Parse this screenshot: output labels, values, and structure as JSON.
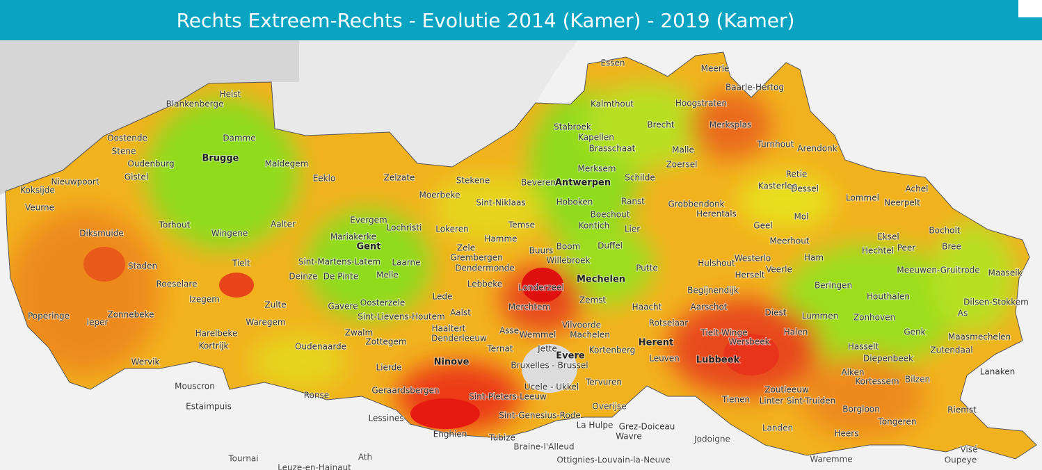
{
  "header": {
    "title": "Rechts Extreem-Rechts - Evolutie 2014 (Kamer) - 2019 (Kamer)"
  },
  "map": {
    "labels": [
      "Essen",
      "Meerle",
      "Baarle-Hertog",
      "Heist",
      "Blankenberge",
      "Kalmthout",
      "Hoogstraten",
      "Brecht",
      "Merksplas",
      "Stabroek",
      "Oostende",
      "Damme",
      "Kapellen",
      "Turnhout",
      "Arendonk",
      "Brasschaat",
      "Stene",
      "Malle",
      "Brugge",
      "Oudenburg",
      "Maldegem",
      "Zoersel",
      "Merksem",
      "Gistel",
      "Eeklo",
      "Zelzate",
      "Stekene",
      "Beveren",
      "Antwerpen",
      "Schilde",
      "Retie",
      "Nieuwpoort",
      "Kasterlee",
      "Dessel",
      "Achel",
      "Koksijde",
      "Moerbeke",
      "Lommel",
      "Neerpelt",
      "Veurne",
      "Sint-Niklaas",
      "Hoboken",
      "Ranst",
      "Grobbendonk",
      "Herentals",
      "Geel",
      "Mol",
      "Evergem",
      "Torhout",
      "Aalter",
      "Wingene",
      "Lochristi",
      "Lokeren",
      "Temse",
      "Boechout",
      "Kontich",
      "Lier",
      "Bocholt",
      "Diksmuide",
      "Mariakerke",
      "Hamme",
      "Eksel",
      "Gent",
      "Boom",
      "Duffel",
      "Meerhout",
      "Hechtel",
      "Peer",
      "Bree",
      "Zele",
      "Buurs",
      "Sint-Martens-Latem",
      "Laarne",
      "Grembergen",
      "Willebroek",
      "Tielt",
      "Staden",
      "Dendermonde",
      "Putte",
      "Hulshout",
      "Westerlo",
      "Ham",
      "Meeuwen-Gruitrode",
      "Herselt",
      "Veerle",
      "Roeselare",
      "Deinze",
      "De Pinte",
      "Melle",
      "Maaseik",
      "Lebbeke",
      "Londerzeel",
      "Mechelen",
      "Beringen",
      "Begijnendijk",
      "Izegem",
      "Lede",
      "Houthalen",
      "Dilsen-Stokkem",
      "Zulte",
      "Merchtem",
      "Zemst",
      "Haacht",
      "Aarschot",
      "Gavere",
      "Oosterzele",
      "Aalst",
      "Diest",
      "Poperinge",
      "Ieper",
      "Zonnebeke",
      "Waregem",
      "Sint-Lievens-Houtem",
      "Lummen",
      "Zonhoven",
      "Haaltert",
      "Asse",
      "Wemmel",
      "Vilvoorde",
      "Machelen",
      "Rotselaar",
      "Tielt-Winge",
      "Wersbeek",
      "Genk",
      "As",
      "Maasmechelen",
      "Halen",
      "Zwalm",
      "Harelbeke",
      "Denderleeuw",
      "Zottegem",
      "Oudenaarde",
      "Hasselt",
      "Herent",
      "Kortrijk",
      "Jette",
      "Evere",
      "Kortenberg",
      "Ternat",
      "Zutendaal",
      "Wervik",
      "Bruxelles - Brussel",
      "Leuven",
      "Lubbeek",
      "Diepenbeek",
      "Ninove",
      "Lierde",
      "Lanaken",
      "Mouscron",
      "Alken",
      "Kortessem",
      "Bilzen",
      "Tervuren",
      "Ucele - Ukkel",
      "Geraardsbergen",
      "Ronse",
      "Zoutleeuw",
      "Tienen",
      "Linter",
      "Sint-Truiden",
      "Sint-Pieters-Leeuw",
      "Estaimpuis",
      "Riemst",
      "Overijse",
      "Sint-Genesius-Rode",
      "Borgloon",
      "Lessines",
      "La Hulpe",
      "Grez-Doiceau",
      "Tongeren",
      "Landen",
      "Heers",
      "Enghien",
      "Wavre",
      "Tubize",
      "Jodoigne",
      "Braine-l'Alleud",
      "Visé",
      "Tournai",
      "Ath",
      "Waremme",
      "Oupeye",
      "Ottignies-Louvain-la-Neuve",
      "Leuze-en-Hainaut"
    ]
  }
}
